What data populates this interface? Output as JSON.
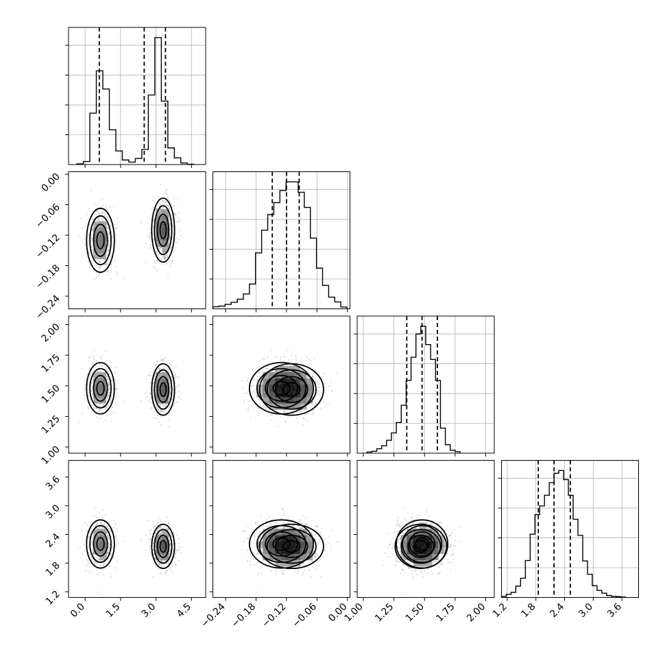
{
  "chart_data": {
    "type": "scatter",
    "title": "",
    "grid": true,
    "n_params": 4,
    "axes_ticks": [
      {
        "values": [
          0.0,
          1.5,
          3.0,
          4.5
        ],
        "labels": [
          "0.0",
          "1.5",
          "3.0",
          "4.5"
        ],
        "range": [
          -0.7,
          5.1
        ]
      },
      {
        "values": [
          -0.24,
          -0.18,
          -0.12,
          -0.06,
          0.0
        ],
        "labels": [
          "−0.24",
          "−0.18",
          "−0.12",
          "−0.06",
          "0.00"
        ],
        "range": [
          -0.265,
          0.005
        ]
      },
      {
        "values": [
          1.0,
          1.25,
          1.5,
          1.75,
          2.0
        ],
        "labels": [
          "1.00",
          "1.25",
          "1.50",
          "1.75",
          "2.00"
        ],
        "range": [
          0.95,
          2.07
        ]
      },
      {
        "values": [
          1.2,
          1.8,
          2.4,
          3.0,
          3.6
        ],
        "labels": [
          "1.2",
          "1.8",
          "2.4",
          "3.0",
          "3.6"
        ],
        "range": [
          1.08,
          3.95
        ]
      }
    ],
    "diagonal_ticks": [
      {
        "labels": [],
        "range": [
          0,
          5
        ]
      },
      {
        "labels": [],
        "range": [
          0,
          4
        ]
      },
      {
        "labels": [],
        "range": [
          0,
          4
        ]
      },
      {
        "labels": [],
        "range": [
          0,
          3
        ]
      }
    ],
    "quantiles": [
      [
        0.6,
        2.5,
        3.4
      ],
      [
        -0.148,
        -0.12,
        -0.095
      ],
      [
        1.355,
        1.48,
        1.605
      ],
      [
        1.85,
        2.18,
        2.52
      ]
    ],
    "histograms": [
      {
        "edges": [
          -0.35,
          -0.075,
          0.2,
          0.475,
          0.75,
          1.025,
          1.3,
          1.575,
          1.85,
          2.125,
          2.4,
          2.675,
          2.95,
          3.225,
          3.5,
          3.775,
          4.05,
          4.325,
          4.6
        ],
        "counts": [
          0.02,
          0.1,
          1.7,
          3.1,
          2.5,
          1.15,
          0.45,
          0.15,
          0.08,
          0.2,
          0.5,
          2.3,
          4.2,
          2.1,
          0.55,
          0.22,
          0.05,
          0.01
        ]
      },
      {
        "edges": [
          -0.265,
          -0.253,
          -0.241,
          -0.229,
          -0.217,
          -0.205,
          -0.193,
          -0.181,
          -0.169,
          -0.157,
          -0.145,
          -0.133,
          -0.121,
          -0.109,
          -0.097,
          -0.085,
          -0.073,
          -0.061,
          -0.049,
          -0.037,
          -0.025,
          -0.013,
          -0.001
        ],
        "counts": [
          0.06,
          0.08,
          0.13,
          0.19,
          0.28,
          0.43,
          0.72,
          1.62,
          2.28,
          2.73,
          3.08,
          3.43,
          3.68,
          3.68,
          3.38,
          2.94,
          2.05,
          1.18,
          0.68,
          0.34,
          0.2,
          0.05
        ]
      },
      {
        "edges": [
          1.03,
          1.07,
          1.11,
          1.15,
          1.19,
          1.23,
          1.27,
          1.31,
          1.35,
          1.39,
          1.43,
          1.47,
          1.51,
          1.55,
          1.59,
          1.63,
          1.67,
          1.71,
          1.75,
          1.79
        ],
        "counts": [
          0.03,
          0.05,
          0.12,
          0.2,
          0.35,
          0.55,
          0.83,
          1.3,
          1.97,
          2.6,
          3.23,
          3.44,
          2.94,
          2.54,
          1.97,
          0.68,
          0.23,
          0.08,
          0.04
        ]
      },
      {
        "edges": [
          1.08,
          1.18,
          1.28,
          1.38,
          1.48,
          1.58,
          1.68,
          1.78,
          1.88,
          1.98,
          2.08,
          2.18,
          2.28,
          2.38,
          2.48,
          2.58,
          2.68,
          2.78,
          2.88,
          2.98,
          3.08,
          3.18,
          3.28,
          3.38,
          3.48,
          3.58,
          3.68
        ],
        "counts": [
          0.03,
          0.08,
          0.13,
          0.29,
          0.49,
          0.94,
          1.61,
          2.11,
          2.33,
          2.6,
          2.92,
          3.16,
          3.23,
          3.0,
          2.6,
          1.99,
          1.58,
          0.93,
          0.59,
          0.3,
          0.18,
          0.11,
          0.05,
          0.03,
          0.02,
          0.01
        ]
      }
    ],
    "modes": [
      [
        {
          "weight": 0.45,
          "mean": [
            0.65,
            -0.13,
            1.48,
            2.2
          ],
          "sd": [
            0.28,
            0.03,
            0.1,
            0.24
          ]
        },
        {
          "weight": 0.55,
          "mean": [
            3.3,
            -0.11,
            1.47,
            2.15
          ],
          "sd": [
            0.23,
            0.03,
            0.1,
            0.22
          ]
        }
      ]
    ],
    "contour_levels": [
      0.8,
      0.55,
      0.28
    ],
    "n_samples": 1400
  }
}
